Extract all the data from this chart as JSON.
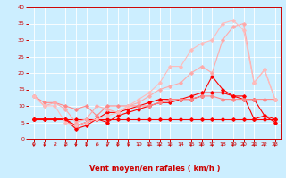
{
  "x": [
    0,
    1,
    2,
    3,
    4,
    5,
    6,
    7,
    8,
    9,
    10,
    11,
    12,
    13,
    14,
    15,
    16,
    17,
    18,
    19,
    20,
    21,
    22,
    23
  ],
  "series": [
    {
      "color": "#ff0000",
      "alpha": 1.0,
      "linewidth": 0.8,
      "markersize": 1.8,
      "y": [
        6,
        6,
        6,
        6,
        6,
        6,
        6,
        6,
        6,
        6,
        6,
        6,
        6,
        6,
        6,
        6,
        6,
        6,
        6,
        6,
        6,
        6,
        6,
        6
      ]
    },
    {
      "color": "#ff0000",
      "alpha": 1.0,
      "linewidth": 0.8,
      "markersize": 1.8,
      "y": [
        6,
        6,
        6,
        6,
        3,
        4,
        6,
        5,
        7,
        8,
        9,
        10,
        11,
        11,
        12,
        12,
        13,
        19,
        15,
        13,
        13,
        6,
        7,
        6
      ]
    },
    {
      "color": "#ff0000",
      "alpha": 1.0,
      "linewidth": 0.8,
      "markersize": 1.8,
      "y": [
        6,
        6,
        6,
        6,
        4,
        5,
        6,
        8,
        8,
        9,
        10,
        11,
        12,
        12,
        12,
        13,
        14,
        14,
        14,
        13,
        12,
        12,
        7,
        5
      ]
    },
    {
      "color": "#ff8888",
      "alpha": 1.0,
      "linewidth": 0.8,
      "markersize": 1.8,
      "y": [
        13,
        11,
        11,
        10,
        9,
        10,
        7,
        10,
        10,
        10,
        10,
        10,
        11,
        12,
        12,
        12,
        13,
        13,
        12,
        12,
        12,
        12,
        12,
        12
      ]
    },
    {
      "color": "#ffaaaa",
      "alpha": 1.0,
      "linewidth": 0.8,
      "markersize": 1.8,
      "y": [
        13,
        10,
        11,
        9,
        5,
        6,
        10,
        9,
        8,
        10,
        11,
        13,
        15,
        16,
        17,
        20,
        22,
        20,
        30,
        34,
        35,
        17,
        21,
        12
      ]
    },
    {
      "color": "#ffbbbb",
      "alpha": 1.0,
      "linewidth": 0.8,
      "markersize": 1.8,
      "y": [
        13,
        10,
        10,
        5,
        4,
        5,
        6,
        7,
        8,
        10,
        12,
        14,
        17,
        22,
        22,
        27,
        29,
        30,
        35,
        36,
        33,
        17,
        21,
        12
      ]
    }
  ],
  "xlabel": "Vent moyen/en rafales ( km/h )",
  "xlim": [
    -0.5,
    23.5
  ],
  "ylim": [
    0,
    40
  ],
  "yticks": [
    0,
    5,
    10,
    15,
    20,
    25,
    30,
    35,
    40
  ],
  "xticks": [
    0,
    1,
    2,
    3,
    4,
    5,
    6,
    7,
    8,
    9,
    10,
    11,
    12,
    13,
    14,
    15,
    16,
    17,
    18,
    19,
    20,
    21,
    22,
    23
  ],
  "bg_color": "#cceeff",
  "grid_color": "#ffffff",
  "axis_color": "#cc0000",
  "tick_color": "#cc0000",
  "xlabel_color": "#cc0000",
  "xlabel_fontsize": 6.0,
  "tick_fontsize": 4.5
}
